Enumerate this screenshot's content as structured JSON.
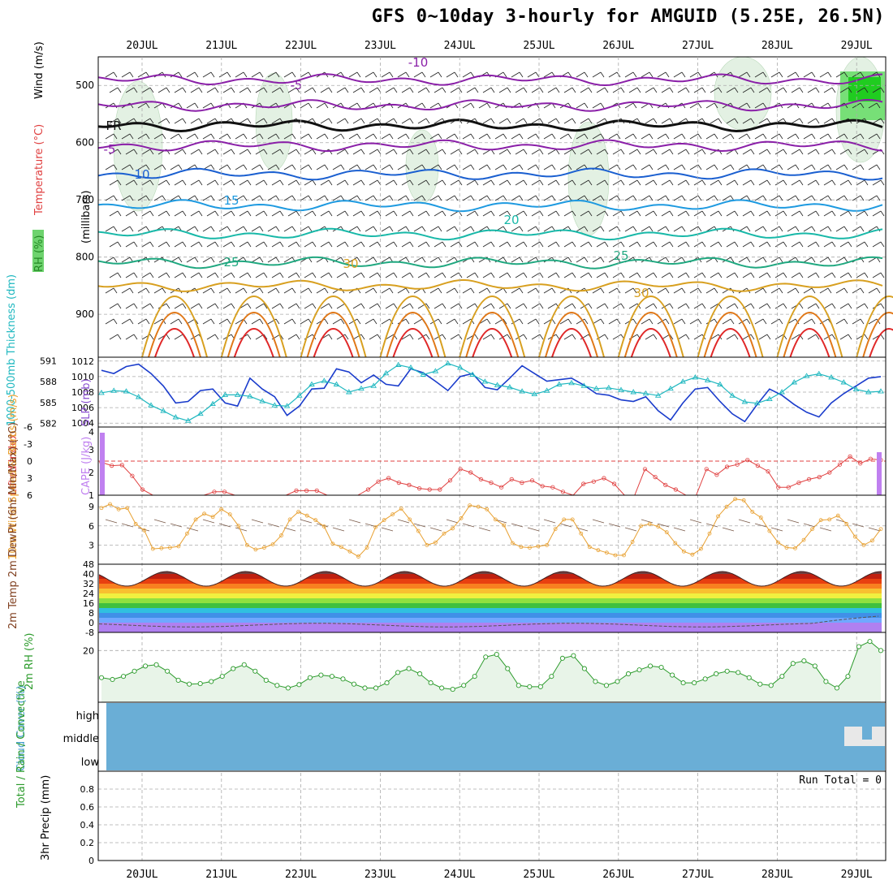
{
  "title": "GFS 0~10day 3-hourly for AMGUID (5.25E, 26.5N)",
  "colors": {
    "purple": "#8a1fa8",
    "freeze": "#111111",
    "blue10": "#1a5fd0",
    "blue15": "#1e9ae0",
    "teal20": "#18b8a8",
    "green25": "#20a880",
    "gold30": "#d8a020",
    "orange": "#e07818",
    "red": "#e02828",
    "slp": "#1a3ccc",
    "thickness": "#20b8c0",
    "lifted": "#e04040",
    "cape": "#c080f0",
    "wind": "#e8a030",
    "rh": "#2a9a2a",
    "cloud": "#6aaed6",
    "rhfill": "#e8f4e8"
  },
  "chart_data": [
    {
      "panel": "upper-air",
      "type": "line",
      "title": "Temperature (°C) / Wind (m/s) / RH (%)",
      "ylabel": "(millibars)",
      "ylabel_parts": {
        "rh": "RH (%)",
        "temp": "Temperature (°C)",
        "wind": "Wind (m/s)",
        "pressure": "(millibars)"
      },
      "yticks": [
        500,
        600,
        700,
        800,
        900
      ],
      "ylim": [
        450,
        975
      ],
      "contour_labels": [
        "-10",
        "-5",
        "FR",
        "-5",
        "10",
        "15",
        "20",
        "25",
        "30",
        "25",
        "30"
      ],
      "isotherms": [
        {
          "label": "-10",
          "p": 490
        },
        {
          "label": "-5",
          "p": 535
        },
        {
          "label": "FR",
          "p": 570
        },
        {
          "label": "-5",
          "p": 605
        },
        {
          "label": "10",
          "p": 655
        },
        {
          "label": "15",
          "p": 710
        },
        {
          "label": "20",
          "p": 760
        },
        {
          "label": "25",
          "p": 810
        },
        {
          "label": "30",
          "p": 850
        }
      ]
    },
    {
      "panel": "slp-thickness",
      "type": "line",
      "ylabel_left": "1000-500mb Thickness (dm)",
      "ylabel_right": "SLP (mb)",
      "yticks_left": [
        591,
        588,
        585,
        582
      ],
      "yticks_right": [
        1012,
        1010,
        1008,
        1006,
        1004
      ],
      "ylim_right": [
        1003.5,
        1012.5
      ],
      "ylim_left": [
        581.5,
        591.5
      ],
      "series": [
        {
          "name": "SLP",
          "values": [
            1010.8,
            1010.4,
            1011.3,
            1011.6,
            1010.4,
            1008.8,
            1006.6,
            1006.8,
            1008.2,
            1008.4,
            1006.6,
            1006.2,
            1009.8,
            1008.4,
            1007.4,
            1005.0,
            1006.2,
            1008.4,
            1008.5,
            1011.0,
            1010.6,
            1009.2,
            1010.2,
            1009.0,
            1008.8,
            1011.0,
            1010.5,
            1009.4,
            1008.2,
            1010.0,
            1010.4,
            1008.6,
            1008.3,
            1009.8,
            1011.4,
            1010.4,
            1009.4,
            1009.6,
            1009.8,
            1008.9,
            1007.8,
            1007.6,
            1007.0,
            1006.8,
            1007.4,
            1005.6,
            1004.4,
            1006.6,
            1008.4,
            1008.6,
            1006.8,
            1005.2,
            1004.2,
            1006.4,
            1008.4,
            1007.6,
            1006.4,
            1005.4,
            1004.8,
            1006.6,
            1007.8,
            1008.8,
            1009.8,
            1010.0
          ]
        },
        {
          "name": "Thickness",
          "values": [
            586.4,
            586.7,
            586.6,
            585.8,
            584.6,
            583.8,
            582.9,
            582.4,
            583.4,
            584.8,
            586.1,
            586.1,
            585.9,
            585.2,
            584.6,
            584.5,
            586.0,
            587.6,
            588.1,
            587.6,
            586.5,
            587.0,
            587.4,
            589.2,
            590.4,
            590.0,
            589.0,
            589.5,
            590.6,
            590.0,
            589.0,
            588.0,
            587.5,
            587.2,
            586.6,
            586.2,
            586.7,
            587.6,
            587.8,
            587.4,
            587.0,
            587.1,
            586.8,
            586.5,
            586.3,
            586.0,
            587.0,
            588.0,
            588.6,
            588.2,
            587.6,
            586.0,
            585.1,
            584.9,
            585.5,
            586.5,
            587.9,
            588.8,
            589.1,
            588.6,
            587.9,
            586.9,
            586.5,
            586.6
          ]
        }
      ]
    },
    {
      "panel": "lifted-cape",
      "type": "line",
      "ylabel_left": "Lifted Index",
      "ylabel_right": "CAPE (J/kg)",
      "yticks_left": [
        -6,
        -3,
        0,
        3,
        6
      ],
      "yticks_right": [
        4,
        3,
        2,
        1
      ],
      "ytick_labels_left": [
        "-6",
        "-3",
        "0",
        "3",
        "6"
      ],
      "ytick_labels_right": [
        "4",
        "3",
        "2",
        "1"
      ],
      "ylim_left": [
        -6,
        6
      ],
      "series": [
        {
          "name": "Lifted Index",
          "values": [
            0.2,
            0.8,
            0.7,
            2.6,
            5.0,
            6,
            6,
            6,
            6,
            6,
            6,
            5.4,
            5.4,
            6,
            6,
            6,
            6,
            6,
            6,
            5.2,
            5.2,
            5.2,
            6,
            6,
            6,
            6,
            5.0,
            3.6,
            3.0,
            3.8,
            4.2,
            4.8,
            5.0,
            5.0,
            3.4,
            1.4,
            2.0,
            3.2,
            3.8,
            4.6,
            3.2,
            3.8,
            3.4,
            4.4,
            4.6,
            5.4,
            6,
            4.0,
            3.6,
            3.0,
            4.0,
            6,
            6,
            1.4,
            2.8,
            4.2,
            5.0,
            6,
            6,
            1.4,
            2.4,
            1.0,
            0.6,
            -0.2,
            0.8,
            1.8,
            4.6,
            4.6,
            3.8,
            3.2,
            2.8,
            2.0,
            0.6,
            -0.8,
            0.4,
            -0.4,
            -0.2
          ]
        }
      ],
      "bars": {
        "name": "CAPE",
        "values": [
          4,
          3
        ]
      }
    },
    {
      "panel": "wind10m",
      "type": "line",
      "ylabel": "10m Wind Speed & Barbs (m/s)",
      "yticks": [
        3,
        6,
        9
      ],
      "ylim": [
        0,
        10.8
      ],
      "series": [
        {
          "name": "10m Wind Speed",
          "values": [
            8.8,
            9.4,
            8.6,
            8.8,
            6.3,
            5.3,
            2.4,
            2.5,
            2.6,
            2.8,
            4.8,
            7.0,
            7.9,
            7.4,
            8.6,
            7.8,
            6.0,
            3.0,
            2.3,
            2.6,
            3.1,
            4.5,
            7.0,
            8.2,
            7.6,
            6.9,
            5.9,
            3.2,
            2.7,
            2.0,
            1.2,
            2.6,
            5.8,
            6.9,
            7.8,
            8.7,
            7.0,
            5.2,
            3.0,
            3.4,
            4.8,
            5.6,
            7.2,
            9.2,
            9.0,
            8.6,
            7.0,
            6.1,
            3.3,
            2.7,
            2.6,
            2.8,
            3.0,
            5.5,
            7.0,
            7.0,
            4.8,
            2.7,
            2.2,
            1.8,
            1.4,
            1.4,
            3.5,
            6.0,
            6.3,
            5.9,
            5.0,
            3.3,
            2.0,
            1.5,
            2.4,
            4.8,
            7.5,
            9.0,
            10.2,
            10.0,
            8.2,
            7.3,
            5.2,
            3.4,
            2.6,
            2.5,
            3.8,
            5.5,
            6.9,
            7.0,
            7.6,
            6.3,
            4.3,
            3.0,
            3.7,
            5.5
          ]
        }
      ]
    },
    {
      "panel": "temp2m",
      "type": "area",
      "ylabel": "2m Temp 2m DewPt (6hr Min/Max) (°C)",
      "yticks": [
        -8,
        0,
        8,
        16,
        24,
        32,
        40,
        48
      ],
      "ytick_labels": [
        "-8",
        "0",
        "8",
        "16",
        "24",
        "32",
        "40",
        "48"
      ],
      "ylim": [
        -8,
        48
      ],
      "days": 10,
      "tmin": 30,
      "tmax": 42
    },
    {
      "panel": "rh2m",
      "type": "line",
      "ylabel": "2m RH (%)",
      "yticks": [
        20
      ],
      "ylim": [
        0,
        27
      ],
      "series": [
        {
          "name": "2m RH",
          "values": [
            9.5,
            8.8,
            10.0,
            12.0,
            14.0,
            14.5,
            12.0,
            8.5,
            7.0,
            7.2,
            8.0,
            10.0,
            13.0,
            14.5,
            12.0,
            8.5,
            6.5,
            5.5,
            6.8,
            9.5,
            10.5,
            10.0,
            9.0,
            7.0,
            5.5,
            5.5,
            7.5,
            11.5,
            13.0,
            11.0,
            7.5,
            5.5,
            5.0,
            6.5,
            10.0,
            17.5,
            18.5,
            13.0,
            6.5,
            6.0,
            6.0,
            10.0,
            17.0,
            18.0,
            13.0,
            8.0,
            6.5,
            8.0,
            11.0,
            12.5,
            14.0,
            13.5,
            10.5,
            7.5,
            7.5,
            9.0,
            11.0,
            12.0,
            11.5,
            9.5,
            7.0,
            6.5,
            10.0,
            15.0,
            16.0,
            14.0,
            8.0,
            5.5,
            10.0,
            21.5,
            23.5,
            20.0
          ]
        }
      ]
    },
    {
      "panel": "cloud",
      "type": "area",
      "ylabel": "Cloud Cover (%)",
      "categories": [
        "high",
        "middle",
        "low"
      ]
    },
    {
      "panel": "precip",
      "type": "bar",
      "ylabel_left": "Total / Rain / Convective",
      "ylabel": "3hr Precip (mm)",
      "yticks": [
        0,
        0.2,
        0.4,
        0.6,
        0.8
      ],
      "ytick_labels": [
        "0",
        "0.2",
        "0.4",
        "0.6",
        "0.8"
      ],
      "ylim": [
        0,
        1.0
      ],
      "run_total_label": "Run Total = 0",
      "values": []
    }
  ],
  "dates": [
    "20JUL",
    "21JUL",
    "22JUL",
    "23JUL",
    "24JUL",
    "25JUL",
    "26JUL",
    "27JUL",
    "28JUL",
    "29JUL"
  ]
}
